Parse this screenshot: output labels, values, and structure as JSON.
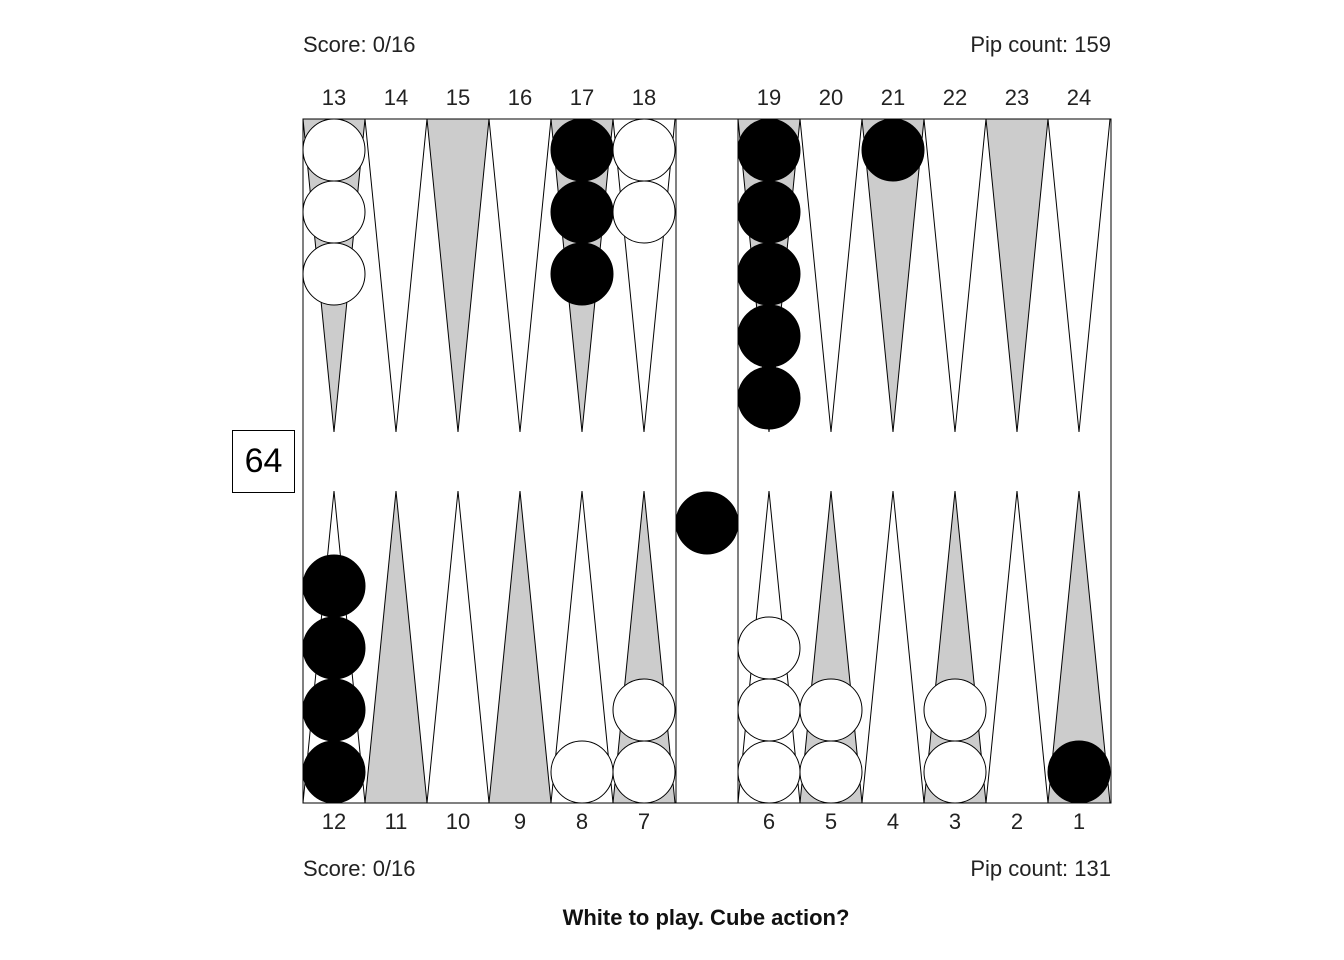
{
  "top": {
    "score": "Score: 0/16",
    "pip_count": "Pip count: 159",
    "point_labels": [
      "13",
      "14",
      "15",
      "16",
      "17",
      "18",
      "19",
      "20",
      "21",
      "22",
      "23",
      "24"
    ]
  },
  "bottom": {
    "score": "Score: 0/16",
    "pip_count": "Pip count: 131",
    "point_labels": [
      "12",
      "11",
      "10",
      "9",
      "8",
      "7",
      "6",
      "5",
      "4",
      "3",
      "2",
      "1"
    ]
  },
  "cube_value": "64",
  "prompt": "White to play. Cube action?",
  "colors": {
    "shaded_point": "#cccccc",
    "white_point": "#ffffff",
    "black_checker": "#000000",
    "white_checker": "#ffffff",
    "outline": "#000000"
  },
  "position": {
    "top_row": [
      {
        "point": "13",
        "color": "white",
        "count": 3
      },
      {
        "point": "14",
        "color": "none",
        "count": 0
      },
      {
        "point": "15",
        "color": "none",
        "count": 0
      },
      {
        "point": "16",
        "color": "none",
        "count": 0
      },
      {
        "point": "17",
        "color": "black",
        "count": 3
      },
      {
        "point": "18",
        "color": "white",
        "count": 2
      },
      {
        "point": "19",
        "color": "black",
        "count": 5
      },
      {
        "point": "20",
        "color": "none",
        "count": 0
      },
      {
        "point": "21",
        "color": "black",
        "count": 1
      },
      {
        "point": "22",
        "color": "none",
        "count": 0
      },
      {
        "point": "23",
        "color": "none",
        "count": 0
      },
      {
        "point": "24",
        "color": "none",
        "count": 0
      }
    ],
    "bottom_row": [
      {
        "point": "12",
        "color": "black",
        "count": 4
      },
      {
        "point": "11",
        "color": "none",
        "count": 0
      },
      {
        "point": "10",
        "color": "none",
        "count": 0
      },
      {
        "point": "9",
        "color": "none",
        "count": 0
      },
      {
        "point": "8",
        "color": "white",
        "count": 1
      },
      {
        "point": "7",
        "color": "white",
        "count": 2
      },
      {
        "point": "6",
        "color": "white",
        "count": 3
      },
      {
        "point": "5",
        "color": "white",
        "count": 2
      },
      {
        "point": "4",
        "color": "none",
        "count": 0
      },
      {
        "point": "3",
        "color": "white",
        "count": 2
      },
      {
        "point": "2",
        "color": "none",
        "count": 0
      },
      {
        "point": "1",
        "color": "black",
        "count": 1
      }
    ],
    "bar": {
      "black": 1,
      "white": 0
    }
  }
}
